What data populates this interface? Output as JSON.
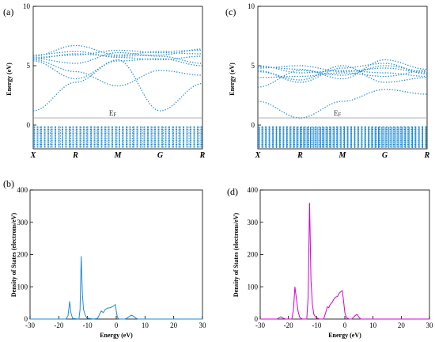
{
  "chart_data": [
    {
      "id": "a",
      "type": "line",
      "panel_label": "(a)",
      "x": [
        "X",
        "R",
        "M",
        "G",
        "R"
      ],
      "ylabel": "Energy (eV)",
      "ylim": [
        -2,
        10
      ],
      "yticks": [
        0,
        5,
        10
      ],
      "ef_label": "EF",
      "color": "#1f8ad6",
      "line_style": "dotted",
      "conduction_bands": [
        [
          5.7,
          5.9,
          6.3,
          6.1,
          6.0
        ],
        [
          5.5,
          4.5,
          3.3,
          4.6,
          4.2
        ],
        [
          5.8,
          6.7,
          5.9,
          6.2,
          6.3
        ],
        [
          5.6,
          5.2,
          6.1,
          5.8,
          5.2
        ],
        [
          5.9,
          6.2,
          5.7,
          5.5,
          5.8
        ],
        [
          5.4,
          3.9,
          5.4,
          5.6,
          5.0
        ],
        [
          1.2,
          3.6,
          5.5,
          1.2,
          3.5
        ],
        [
          5.6,
          6.0,
          5.8,
          5.9,
          6.4
        ]
      ],
      "valence_band_range": [
        -2.5,
        0
      ]
    },
    {
      "id": "b",
      "type": "line",
      "panel_label": "(b)",
      "xlabel": "Energy (eV)",
      "ylabel": "Density of States (electrons/eV)",
      "xlim": [
        -30,
        30
      ],
      "ylim": [
        0,
        400
      ],
      "xticks": [
        -30,
        -20,
        -10,
        0,
        10,
        20,
        30
      ],
      "yticks": [
        0,
        100,
        200,
        300,
        400
      ],
      "color": "#1f8ad6",
      "points": [
        [
          -30,
          0
        ],
        [
          -17.5,
          0
        ],
        [
          -16.8,
          10
        ],
        [
          -16.2,
          55
        ],
        [
          -15.8,
          20
        ],
        [
          -15.2,
          2
        ],
        [
          -13.0,
          0
        ],
        [
          -12.6,
          30
        ],
        [
          -12.2,
          195
        ],
        [
          -11.8,
          80
        ],
        [
          -11.4,
          30
        ],
        [
          -10.8,
          12
        ],
        [
          -10.2,
          3
        ],
        [
          -8.0,
          0
        ],
        [
          -6.5,
          2
        ],
        [
          -5.8,
          15
        ],
        [
          -5.2,
          25
        ],
        [
          -4.5,
          20
        ],
        [
          -3.8,
          30
        ],
        [
          -3.0,
          34
        ],
        [
          -2.2,
          35
        ],
        [
          -1.4,
          38
        ],
        [
          -0.7,
          42
        ],
        [
          -0.3,
          45
        ],
        [
          0.0,
          25
        ],
        [
          0.4,
          5
        ],
        [
          1.0,
          0
        ],
        [
          3.0,
          0
        ],
        [
          3.8,
          3
        ],
        [
          4.5,
          8
        ],
        [
          5.2,
          12
        ],
        [
          6.0,
          9
        ],
        [
          6.8,
          3
        ],
        [
          7.5,
          0
        ],
        [
          30,
          0
        ]
      ]
    },
    {
      "id": "c",
      "type": "line",
      "panel_label": "(c)",
      "x": [
        "X",
        "R",
        "M",
        "G",
        "R"
      ],
      "ylabel": "Energy (eV)",
      "ylim": [
        -2,
        10
      ],
      "yticks": [
        0,
        5,
        10
      ],
      "ef_label": "EF",
      "color": "#1f8ad6",
      "line_style": "dotted",
      "conduction_bands": [
        [
          4.9,
          4.7,
          3.9,
          5.5,
          4.7
        ],
        [
          4.6,
          3.6,
          4.8,
          5.2,
          4.3
        ],
        [
          4.0,
          4.1,
          4.4,
          4.1,
          4.6
        ],
        [
          2.0,
          0.6,
          2.0,
          3.0,
          2.6
        ],
        [
          5.0,
          4.4,
          4.6,
          4.4,
          4.1
        ],
        [
          3.2,
          4.6,
          4.2,
          5.0,
          4.5
        ],
        [
          4.5,
          3.8,
          5.0,
          3.6,
          4.0
        ],
        [
          4.8,
          5.0,
          4.5,
          4.8,
          4.4
        ]
      ],
      "valence_band_range": [
        -2.5,
        0
      ]
    },
    {
      "id": "d",
      "type": "line",
      "panel_label": "(d)",
      "xlabel": "Energy (eV)",
      "ylabel": "Density of States (electrons/eV)",
      "xlim": [
        -30,
        30
      ],
      "ylim": [
        0,
        400
      ],
      "xticks": [
        -30,
        -20,
        -10,
        0,
        10,
        20,
        30
      ],
      "yticks": [
        0,
        100,
        200,
        300,
        400
      ],
      "color": "#d400d4",
      "points": [
        [
          -30,
          0
        ],
        [
          -24.0,
          0
        ],
        [
          -23.3,
          4
        ],
        [
          -22.7,
          7
        ],
        [
          -22.0,
          3
        ],
        [
          -21.0,
          0
        ],
        [
          -18.8,
          0
        ],
        [
          -18.2,
          30
        ],
        [
          -17.7,
          100
        ],
        [
          -17.2,
          65
        ],
        [
          -16.6,
          25
        ],
        [
          -16.0,
          5
        ],
        [
          -15.0,
          0
        ],
        [
          -13.5,
          0
        ],
        [
          -13.0,
          70
        ],
        [
          -12.5,
          360
        ],
        [
          -12.0,
          120
        ],
        [
          -11.5,
          45
        ],
        [
          -11.0,
          15
        ],
        [
          -10.3,
          5
        ],
        [
          -9.0,
          0
        ],
        [
          -7.5,
          0
        ],
        [
          -6.8,
          20
        ],
        [
          -6.2,
          38
        ],
        [
          -5.7,
          35
        ],
        [
          -5.2,
          45
        ],
        [
          -4.6,
          50
        ],
        [
          -4.0,
          60
        ],
        [
          -3.3,
          68
        ],
        [
          -2.6,
          70
        ],
        [
          -2.0,
          80
        ],
        [
          -1.4,
          85
        ],
        [
          -0.9,
          88
        ],
        [
          -0.5,
          60
        ],
        [
          0.0,
          20
        ],
        [
          0.6,
          4
        ],
        [
          1.5,
          0
        ],
        [
          2.5,
          0
        ],
        [
          3.1,
          6
        ],
        [
          3.8,
          12
        ],
        [
          4.4,
          14
        ],
        [
          5.0,
          6
        ],
        [
          5.6,
          0
        ],
        [
          30,
          0
        ]
      ]
    }
  ]
}
